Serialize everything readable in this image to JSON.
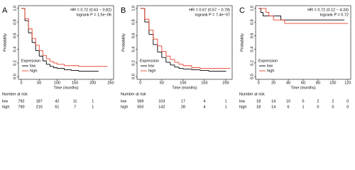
{
  "chart_data": [
    {
      "type": "line",
      "panel": "A",
      "hr": "HR = 0.72 (0.63 − 0.82)",
      "logrank": "logrank P = 1.5e−06",
      "ylabel": "Probability",
      "xlabel": "Time (months)",
      "legend_title": "Expression",
      "xlim": [
        -8,
        258
      ],
      "xticks": [
        0,
        50,
        100,
        150,
        200,
        250
      ],
      "ylim": [
        -0.04,
        1.04
      ],
      "yticks": [
        {
          "value": 0,
          "label": "0.0"
        },
        0.2,
        0.4,
        0.6,
        0.8,
        {
          "value": 1,
          "label": "1.0"
        }
      ],
      "series": [
        {
          "name": "low",
          "color": "#000000",
          "x": [
            0,
            10,
            20,
            30,
            40,
            50,
            60,
            70,
            80,
            90,
            100,
            120,
            140,
            160,
            180,
            200,
            215
          ],
          "values": [
            1,
            0.82,
            0.64,
            0.5,
            0.38,
            0.3,
            0.23,
            0.18,
            0.15,
            0.13,
            0.12,
            0.1,
            0.09,
            0.08,
            0.08,
            0.08,
            0.08
          ]
        },
        {
          "name": "high",
          "color": "#e8402a",
          "x": [
            0,
            10,
            20,
            30,
            40,
            50,
            60,
            70,
            80,
            90,
            100,
            120,
            140,
            160,
            180,
            200,
            240
          ],
          "values": [
            1,
            0.85,
            0.7,
            0.56,
            0.46,
            0.38,
            0.31,
            0.26,
            0.22,
            0.2,
            0.18,
            0.16,
            0.16,
            0.15,
            0.15,
            0.15,
            0.15
          ]
        }
      ],
      "risk_table": {
        "title": "Number at risk",
        "x": [
          0,
          50,
          100,
          150,
          200
        ],
        "rows": [
          {
            "name": "low",
            "color": "#000000",
            "values": [
              792,
              187,
              42,
              11,
              1
            ]
          },
          {
            "name": "high",
            "color": "#e8402a",
            "values": [
              790,
              215,
              61,
              7,
              1
            ]
          }
        ]
      }
    },
    {
      "type": "line",
      "panel": "B",
      "hr": "HR = 0.67 (0.57 − 0.78)",
      "logrank": "logrank P = 7.4e−07",
      "ylabel": "Probability",
      "xlabel": "Time (months)",
      "legend_title": "Expression",
      "xlim": [
        -8,
        215
      ],
      "xticks": [
        0,
        50,
        100,
        150,
        200
      ],
      "ylim": [
        -0.04,
        1.04
      ],
      "yticks": [
        {
          "value": 0,
          "label": "0.0"
        },
        0.2,
        0.4,
        0.6,
        0.8,
        {
          "value": 1,
          "label": "1.0"
        }
      ],
      "series": [
        {
          "name": "low",
          "color": "#000000",
          "x": [
            0,
            10,
            20,
            30,
            40,
            50,
            60,
            70,
            80,
            90,
            100,
            120,
            140,
            160,
            180,
            200
          ],
          "values": [
            1,
            0.8,
            0.62,
            0.47,
            0.36,
            0.28,
            0.21,
            0.17,
            0.14,
            0.12,
            0.11,
            0.1,
            0.09,
            0.08,
            0.08,
            0.08
          ]
        },
        {
          "name": "high",
          "color": "#e8402a",
          "x": [
            0,
            10,
            20,
            30,
            40,
            50,
            60,
            70,
            80,
            90,
            100,
            120,
            140,
            160,
            180,
            210
          ],
          "values": [
            1,
            0.84,
            0.68,
            0.55,
            0.45,
            0.37,
            0.3,
            0.25,
            0.21,
            0.18,
            0.16,
            0.13,
            0.12,
            0.12,
            0.12,
            0.12
          ]
        }
      ],
      "risk_table": {
        "title": "Number at risk",
        "x": [
          0,
          50,
          100,
          150,
          200
        ],
        "rows": [
          {
            "name": "low",
            "color": "#000000",
            "values": [
              589,
              103,
              17,
              4,
              1
            ]
          },
          {
            "name": "high",
            "color": "#e8402a",
            "values": [
              550,
              142,
              28,
              4,
              1
            ]
          }
        ]
      }
    },
    {
      "type": "line",
      "panel": "C",
      "hr": "HR = 0.72 (0.12 − 4.33)",
      "logrank": "logrank P = 0.72",
      "ylabel": "Probability",
      "xlabel": "Time (months)",
      "legend_title": "Expression",
      "xlim": [
        -4,
        124
      ],
      "xticks": [
        0,
        20,
        40,
        60,
        80,
        100,
        120
      ],
      "ylim": [
        -0.04,
        1.04
      ],
      "yticks": [
        {
          "value": 0,
          "label": "0.0"
        },
        0.2,
        0.4,
        0.6,
        0.8,
        {
          "value": 1,
          "label": "1.0"
        }
      ],
      "series": [
        {
          "name": "low",
          "color": "#000000",
          "x": [
            0,
            3,
            6,
            10,
            30,
            115
          ],
          "values": [
            1,
            0.94,
            0.89,
            0.89,
            0.83,
            0.83
          ]
        },
        {
          "name": "high",
          "color": "#e8402a",
          "x": [
            0,
            10,
            14,
            20,
            35,
            120
          ],
          "values": [
            1,
            0.94,
            0.89,
            0.83,
            0.78,
            0.78
          ]
        }
      ],
      "risk_table": {
        "title": "Number at risk",
        "x": [
          0,
          20,
          40,
          60,
          80,
          100,
          120
        ],
        "rows": [
          {
            "name": "low",
            "color": "#000000",
            "values": [
              18,
              14,
              10,
              5,
              2,
              2,
              0
            ]
          },
          {
            "name": "high",
            "color": "#e8402a",
            "values": [
              18,
              14,
              6,
              1,
              0,
              0,
              0
            ]
          }
        ]
      }
    }
  ]
}
